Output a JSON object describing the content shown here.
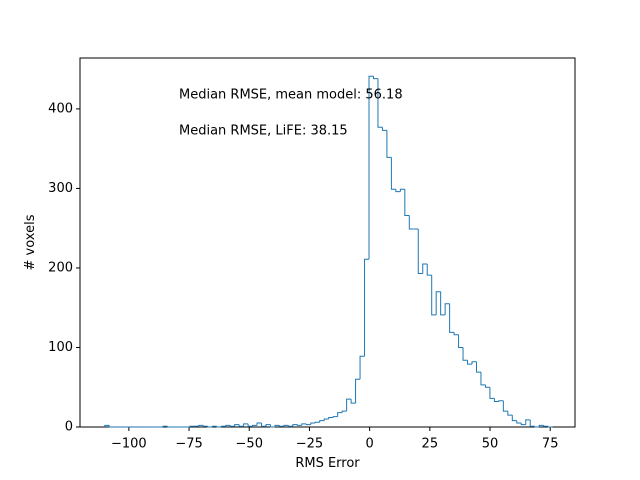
{
  "chart_data": {
    "type": "histogram",
    "x_label": "RMS Error",
    "y_label": "# voxels",
    "annotations": [
      "Median RMSE, mean model: 56.18",
      "Median RMSE, LiFE: 38.15"
    ],
    "bins": [
      -110,
      -108.14,
      -106.28,
      -104.42,
      -102.56,
      -100.7,
      -98.84,
      -96.98,
      -95.12,
      -93.26,
      -91.4,
      -89.54,
      -87.68,
      -85.82,
      -83.96,
      -82.1,
      -80.24,
      -78.38,
      -76.52,
      -74.66,
      -72.8,
      -70.94,
      -69.08,
      -67.22,
      -65.36,
      -63.5,
      -61.64,
      -59.78,
      -57.92,
      -56.06,
      -54.2,
      -52.34,
      -50.48,
      -48.62,
      -46.76,
      -44.9,
      -43.04,
      -41.18,
      -39.32,
      -37.46,
      -35.6,
      -33.74,
      -31.88,
      -30.02,
      -28.16,
      -26.3,
      -24.44,
      -22.58,
      -20.72,
      -18.86,
      -17,
      -15.14,
      -13.28,
      -11.42,
      -9.56,
      -7.7,
      -5.84,
      -3.98,
      -2.12,
      -0.26,
      1.6,
      3.46,
      5.32,
      7.18,
      9.04,
      10.9,
      12.76,
      14.62,
      16.48,
      18.34,
      20.2,
      22.06,
      23.92,
      25.78,
      27.64,
      29.5,
      31.36,
      33.22,
      35.08,
      36.94,
      38.8,
      40.66,
      42.52,
      44.38,
      46.24,
      48.1,
      49.96,
      51.82,
      53.68,
      55.54,
      57.4,
      59.26,
      61.12,
      62.98,
      64.84,
      66.7,
      68.56,
      70.42,
      72.28,
      74.14,
      76
    ],
    "counts": [
      2,
      0,
      0,
      0,
      0,
      0,
      0,
      0,
      0,
      0,
      0,
      0,
      0,
      1,
      0,
      0,
      0,
      0,
      0,
      1,
      1,
      2,
      1,
      0,
      1,
      0,
      1,
      2,
      1,
      3,
      1,
      4,
      1,
      2,
      5,
      1,
      3,
      0,
      2,
      1,
      2,
      1,
      3,
      2,
      4,
      3,
      5,
      6,
      8,
      10,
      12,
      13,
      18,
      20,
      35,
      30,
      60,
      89,
      211,
      441,
      438,
      377,
      373,
      339,
      299,
      296,
      299,
      266,
      249,
      249,
      193,
      205,
      191,
      141,
      170,
      141,
      155,
      119,
      116,
      100,
      84,
      79,
      82,
      69,
      53,
      50,
      36,
      32,
      33,
      20,
      15,
      8,
      5,
      3,
      9,
      1,
      0,
      2,
      1,
      0
    ],
    "color": "#1f77b4",
    "xlim": [
      -120.3,
      85.3
    ],
    "xticks": [
      {
        "value": -100,
        "label": "−100"
      },
      {
        "value": -75,
        "label": "−75"
      },
      {
        "value": -50,
        "label": "−50"
      },
      {
        "value": -25,
        "label": "−25"
      },
      0,
      25,
      50,
      75
    ],
    "ylim": [
      0,
      464
    ],
    "yticks": [
      0,
      100,
      200,
      300,
      400
    ]
  }
}
